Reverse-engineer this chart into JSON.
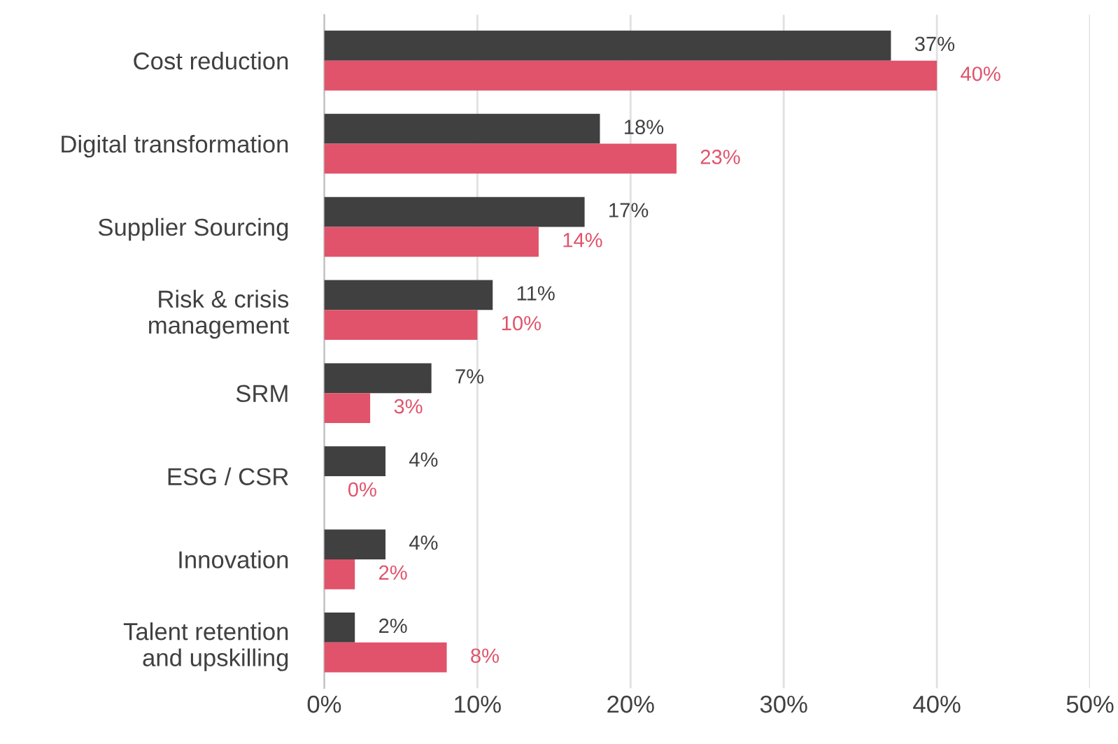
{
  "chart_data": {
    "type": "bar",
    "orientation": "horizontal",
    "categories": [
      "Cost reduction",
      "Digital transformation",
      "Supplier Sourcing",
      "Risk & crisis\nmanagement",
      "SRM",
      "ESG / CSR",
      "Innovation",
      "Talent retention\nand upskilling"
    ],
    "series": [
      {
        "color": "#404040",
        "values": [
          37,
          18,
          17,
          11,
          7,
          4,
          4,
          2
        ],
        "value_labels": [
          "37%",
          "18%",
          "17%",
          "11%",
          "7%",
          "4%",
          "4%",
          "2%"
        ]
      },
      {
        "color": "#e0536b",
        "values": [
          40,
          23,
          14,
          10,
          3,
          0,
          2,
          8
        ],
        "value_labels": [
          "40%",
          "23%",
          "14%",
          "10%",
          "3%",
          "0%",
          "2%",
          "8%"
        ]
      }
    ],
    "xlim": [
      0,
      50
    ],
    "xticks": [
      {
        "value": 0,
        "label": "0%"
      },
      {
        "value": 10,
        "label": "10%"
      },
      {
        "value": 20,
        "label": "20%"
      },
      {
        "value": 30,
        "label": "30%"
      },
      {
        "value": 40,
        "label": "40%"
      },
      {
        "value": 50,
        "label": "50%"
      }
    ],
    "grid": "x",
    "legend": false
  }
}
